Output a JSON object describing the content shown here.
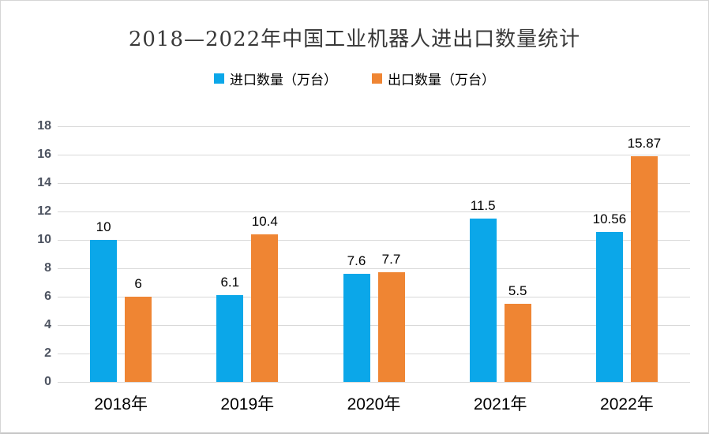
{
  "chart_data": {
    "type": "bar",
    "title": "2018—2022年中国工业机器人进出口数量统计",
    "categories": [
      "2018年",
      "2019年",
      "2020年",
      "2021年",
      "2022年"
    ],
    "series": [
      {
        "name": "进口数量（万台）",
        "key": "import",
        "color": "#0ba7e9",
        "values": [
          10,
          6.1,
          7.6,
          11.5,
          10.56
        ]
      },
      {
        "name": "出口数量（万台）",
        "key": "export",
        "color": "#ef8533",
        "values": [
          6,
          10.4,
          7.7,
          5.5,
          15.87
        ]
      }
    ],
    "ylim": [
      0,
      18
    ],
    "ytick_step": 2,
    "yticks": [
      "0",
      "2",
      "4",
      "6",
      "8",
      "10",
      "12",
      "14",
      "16",
      "18"
    ],
    "grid": true,
    "legend_position": "top",
    "colors": {
      "background": "#ffffff",
      "gridline": "#d9d9d9",
      "title_text": "#383838",
      "axis_label_text": "#4d5360",
      "data_label_text": "#000000",
      "frame_border": "#d5d5d5"
    }
  }
}
